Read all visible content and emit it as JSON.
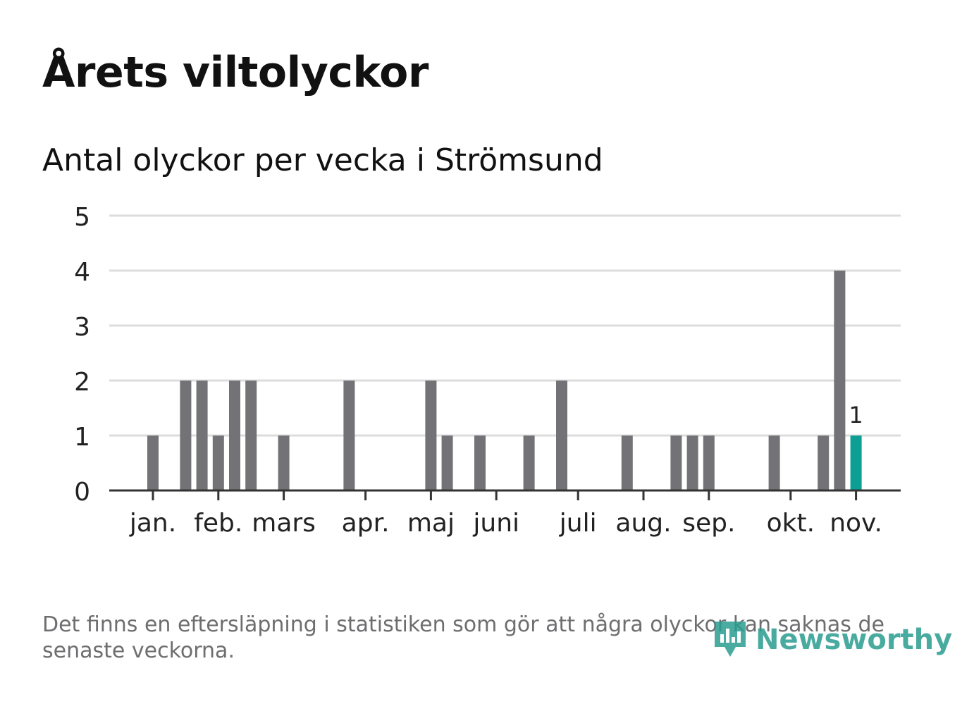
{
  "title": "Årets viltolyckor",
  "subtitle": "Antal olyckor per vecka i Strömsund",
  "footnote": "Det finns en eftersläpning i statistiken som gör att några olyckor kan saknas de senaste veckorna.",
  "logo": {
    "text": "Newsworthy",
    "icon": "newsworthy-logo-icon"
  },
  "colors": {
    "bar": "#737277",
    "highlight": "#0e9f94",
    "grid": "#dcdcdc",
    "axis": "#333333",
    "text": "#222222"
  },
  "chart_data": {
    "type": "bar",
    "title": "Antal olyckor per vecka i Strömsund",
    "xlabel": "",
    "ylabel": "",
    "ylim": [
      0,
      5
    ],
    "yticks": [
      "0",
      "1",
      "2",
      "3",
      "4",
      "5"
    ],
    "x_unit": "week",
    "x_range": [
      1,
      48
    ],
    "month_ticks": [
      {
        "label": "jan.",
        "week": 3
      },
      {
        "label": "feb.",
        "week": 7
      },
      {
        "label": "mars",
        "week": 11
      },
      {
        "label": "apr.",
        "week": 16
      },
      {
        "label": "maj",
        "week": 20
      },
      {
        "label": "juni",
        "week": 24
      },
      {
        "label": "juli",
        "week": 29
      },
      {
        "label": "aug.",
        "week": 33
      },
      {
        "label": "sep.",
        "week": 37
      },
      {
        "label": "okt.",
        "week": 42
      },
      {
        "label": "nov.",
        "week": 46
      }
    ],
    "bars": [
      {
        "week": 3,
        "value": 1
      },
      {
        "week": 5,
        "value": 2
      },
      {
        "week": 6,
        "value": 2
      },
      {
        "week": 7,
        "value": 1
      },
      {
        "week": 8,
        "value": 2
      },
      {
        "week": 9,
        "value": 2
      },
      {
        "week": 11,
        "value": 1
      },
      {
        "week": 15,
        "value": 2
      },
      {
        "week": 20,
        "value": 2
      },
      {
        "week": 21,
        "value": 1
      },
      {
        "week": 23,
        "value": 1
      },
      {
        "week": 26,
        "value": 1
      },
      {
        "week": 28,
        "value": 2
      },
      {
        "week": 32,
        "value": 1
      },
      {
        "week": 35,
        "value": 1
      },
      {
        "week": 36,
        "value": 1
      },
      {
        "week": 37,
        "value": 1
      },
      {
        "week": 41,
        "value": 1
      },
      {
        "week": 44,
        "value": 1
      },
      {
        "week": 45,
        "value": 4
      },
      {
        "week": 46,
        "value": 1,
        "highlight": true,
        "label": "1"
      }
    ]
  }
}
